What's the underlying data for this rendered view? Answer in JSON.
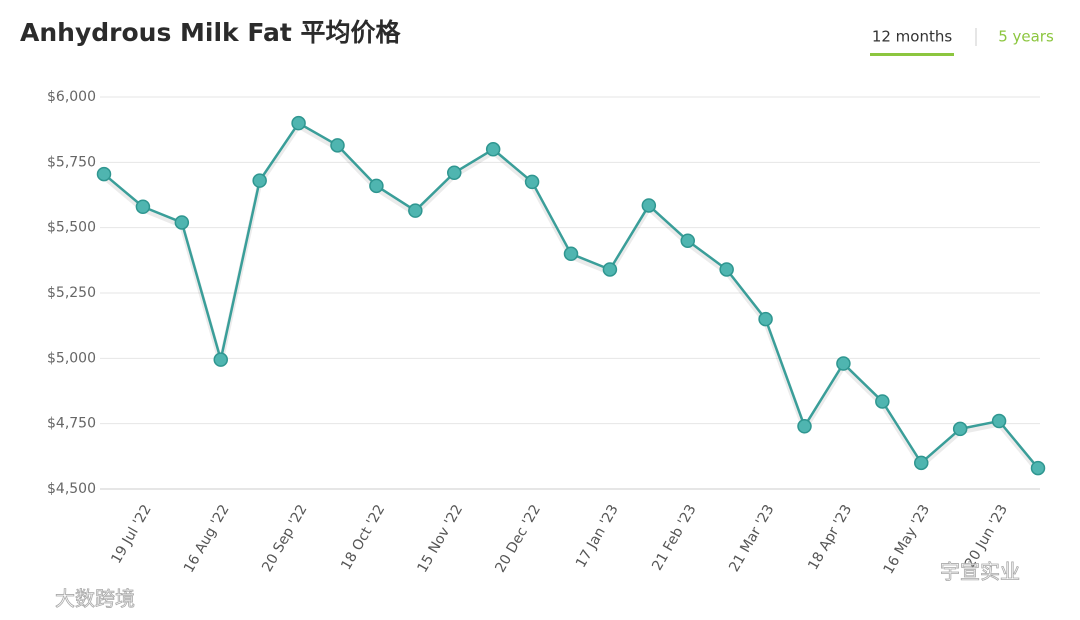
{
  "chart_data": {
    "type": "line",
    "title": "Anhydrous Milk Fat 平均价格",
    "tabs": [
      "12 months",
      "5 years"
    ],
    "watermarks": [
      "大数跨境",
      "宇宣实业"
    ],
    "categories": [
      null,
      "19 Jul '22",
      null,
      "16 Aug '22",
      null,
      "20 Sep '22",
      null,
      "18 Oct '22",
      null,
      "15 Nov '22",
      null,
      "20 Dec '22",
      null,
      "17 Jan '23",
      null,
      "21 Feb '23",
      null,
      "21 Mar '23",
      null,
      "18 Apr '23",
      null,
      "16 May '23",
      null,
      "20 Jun '23",
      null
    ],
    "series": [
      {
        "color": "#3a9e99",
        "values": [
          5705,
          5580,
          5520,
          4995,
          5680,
          5900,
          5815,
          5660,
          5565,
          5710,
          5800,
          5675,
          5400,
          5340,
          5585,
          5450,
          5340,
          5150,
          4740,
          4980,
          4835,
          4600,
          4730,
          4760,
          4580
        ]
      }
    ],
    "ylim": [
      4500,
      6000
    ],
    "yticks": [
      {
        "value": 4500,
        "label": "$4,500"
      },
      {
        "value": 4750,
        "label": "$4,750"
      },
      {
        "value": 5000,
        "label": "$5,000"
      },
      {
        "value": 5250,
        "label": "$5,250"
      },
      {
        "value": 5500,
        "label": "$5,500"
      },
      {
        "value": 5750,
        "label": "$5,750"
      },
      {
        "value": 6000,
        "label": "$6,000"
      }
    ],
    "grid": true
  }
}
